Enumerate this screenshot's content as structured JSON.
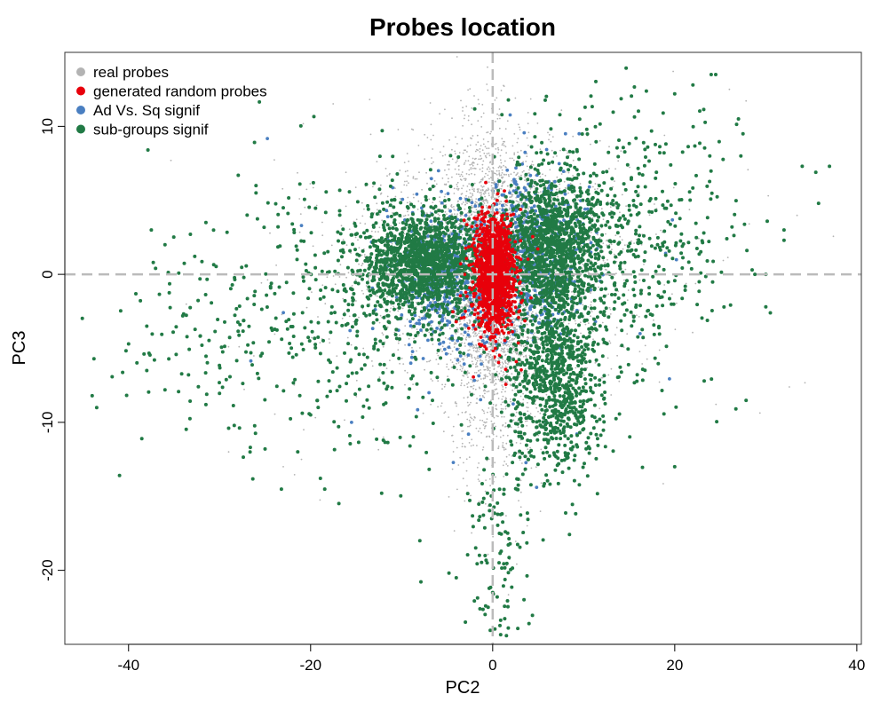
{
  "chart_data": {
    "type": "scatter",
    "title": "Probes location",
    "xlabel": "PC2",
    "ylabel": "PC3",
    "xlim": [
      -47,
      40.5
    ],
    "ylim": [
      -25,
      15
    ],
    "x_ticks": [
      -40,
      -20,
      0,
      20,
      40
    ],
    "y_ticks": [
      -20,
      -10,
      0,
      10
    ],
    "reference_lines": {
      "x": 0,
      "y": 0,
      "style": "dashed",
      "color": "#bbbbbb"
    },
    "legend": {
      "placement": "top-left",
      "entries": [
        {
          "label": "real probes",
          "color": "#b3b3b3"
        },
        {
          "label": "generated random probes",
          "color": "#e8000b"
        },
        {
          "label": "Ad Vs. Sq signif",
          "color": "#4a7fc1"
        },
        {
          "label": "sub-groups signif",
          "color": "#217a45"
        }
      ]
    },
    "series": [
      {
        "name": "real probes",
        "color": "#b3b3b3",
        "clusters": [
          {
            "cx": 0,
            "cy": 0,
            "sx": 2.5,
            "sy": 4.5,
            "n": 2600
          },
          {
            "cx": -5,
            "cy": 0.5,
            "sx": 5.5,
            "sy": 3.5,
            "n": 900
          },
          {
            "cx": 5,
            "cy": 1,
            "sx": 5.5,
            "sy": 3.5,
            "n": 900
          },
          {
            "cx": 0,
            "cy": -9,
            "sx": 2.5,
            "sy": 4,
            "n": 300
          },
          {
            "cx": 0,
            "cy": 0,
            "sx": 12,
            "sy": 6,
            "n": 350
          }
        ],
        "points": [
          [
            -21,
            -12.5
          ],
          [
            -12,
            -11
          ],
          [
            -23,
            -13
          ],
          [
            -29,
            -12
          ],
          [
            26,
            12.5
          ]
        ]
      },
      {
        "name": "generated random probes",
        "color": "#e8000b",
        "clusters": [
          {
            "cx": 0.2,
            "cy": 0,
            "sx": 1.0,
            "sy": 1.8,
            "n": 1200
          },
          {
            "cx": 0,
            "cy": 0,
            "sx": 1.7,
            "sy": 2.4,
            "n": 200
          }
        ],
        "points": [
          [
            -4,
            -3.2
          ],
          [
            -2,
            3.8
          ],
          [
            0.5,
            5
          ],
          [
            2,
            4
          ],
          [
            -3,
            -2.5
          ],
          [
            0.3,
            -5
          ]
        ]
      },
      {
        "name": "Ad Vs. Sq signif",
        "color": "#4a7fc1",
        "clusters": [
          {
            "cx": -4.5,
            "cy": -0.5,
            "sx": 3.0,
            "sy": 2.4,
            "n": 450
          },
          {
            "cx": 4.5,
            "cy": 1.0,
            "sx": 2.6,
            "sy": 3.0,
            "n": 450
          },
          {
            "cx": 0,
            "cy": 0,
            "sx": 8,
            "sy": 5,
            "n": 80
          }
        ],
        "points": [
          [
            -21,
            3.3
          ],
          [
            -15.5,
            -10
          ],
          [
            8,
            9.5
          ],
          [
            9.5,
            9.5
          ],
          [
            -9,
            -6
          ],
          [
            -7,
            -8
          ]
        ]
      },
      {
        "name": "sub-groups signif",
        "color": "#217a45",
        "clusters": [
          {
            "cx": -7.5,
            "cy": 0.8,
            "sx": 3.3,
            "sy": 1.8,
            "n": 1400
          },
          {
            "cx": 6.5,
            "cy": 2,
            "sx": 2.7,
            "sy": 2.3,
            "n": 1200
          },
          {
            "cx": 7,
            "cy": -7,
            "sx": 2.6,
            "sy": 3.2,
            "n": 900
          },
          {
            "cx": 1,
            "cy": -18,
            "sx": 1.8,
            "sy": 3.2,
            "n": 110
          },
          {
            "cx": -14,
            "cy": -2,
            "sx": 7,
            "sy": 5,
            "n": 380
          },
          {
            "cx": 14,
            "cy": 2,
            "sx": 6,
            "sy": 5,
            "n": 520
          },
          {
            "cx": -28,
            "cy": -4,
            "sx": 7,
            "sy": 4,
            "n": 140
          }
        ],
        "points": [
          [
            -43.5,
            -9
          ],
          [
            -44,
            -8.2
          ],
          [
            -43.8,
            -5.7
          ],
          [
            -40,
            -4.7
          ],
          [
            -38,
            -3.5
          ],
          [
            -37.5,
            3
          ],
          [
            -36,
            2
          ],
          [
            -31.5,
            3.5
          ],
          [
            -26,
            6
          ],
          [
            -26,
            5.5
          ],
          [
            -23,
            4.5
          ],
          [
            24,
            13.5
          ],
          [
            24.5,
            13.5
          ],
          [
            22,
            12.8
          ],
          [
            20,
            12.2
          ],
          [
            27.5,
            9.5
          ],
          [
            27,
            10.5
          ],
          [
            34,
            7.3
          ],
          [
            35.5,
            6.9
          ],
          [
            37,
            7.3
          ],
          [
            35.8,
            4.8
          ],
          [
            32,
            3
          ],
          [
            32,
            2.3
          ],
          [
            30,
            -2.2
          ],
          [
            30.5,
            -2.6
          ],
          [
            28.5,
            0.3
          ],
          [
            28.8,
            0
          ],
          [
            30,
            0
          ],
          [
            20,
            -13
          ],
          [
            -3,
            -23.5
          ],
          [
            -0.5,
            -22.5
          ],
          [
            -4,
            -20.5
          ],
          [
            -8,
            -18
          ],
          [
            0,
            -21.5
          ],
          [
            0.5,
            -21.8
          ],
          [
            -29,
            -10.4
          ],
          [
            -31.5,
            -8.8
          ],
          [
            -36,
            -7.8
          ],
          [
            -38,
            -6.5
          ],
          [
            -25,
            -11.8
          ],
          [
            -20,
            -9.5
          ]
        ]
      }
    ]
  }
}
